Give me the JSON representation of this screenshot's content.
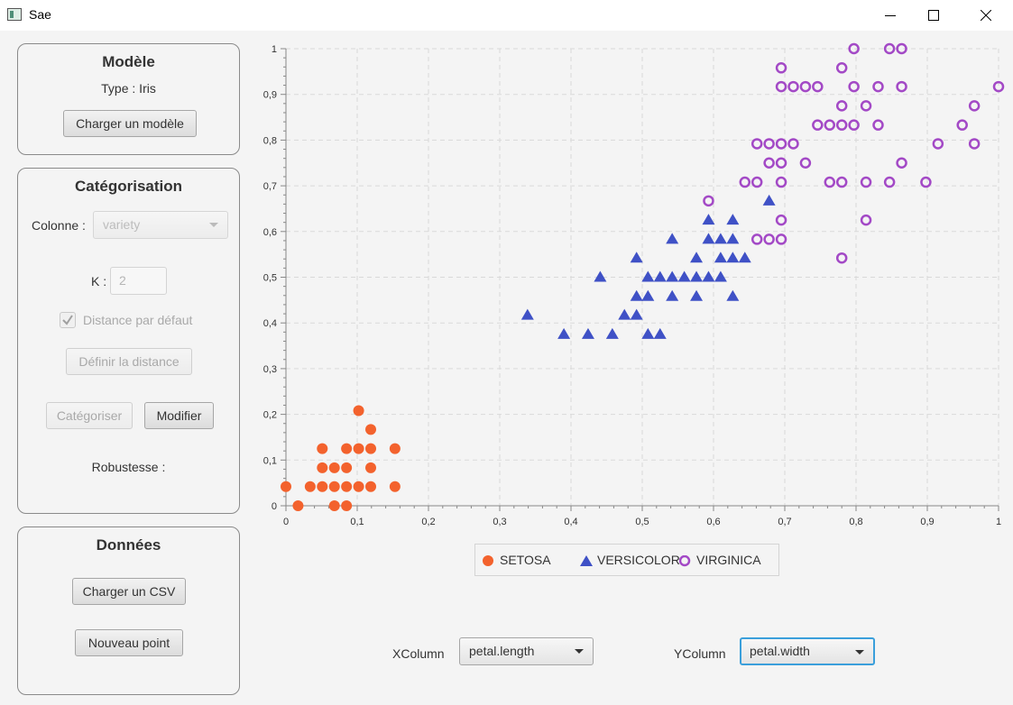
{
  "window": {
    "title": "Sae"
  },
  "model_panel": {
    "title": "Modèle",
    "type_text": "Type : Iris",
    "load_button": "Charger un modèle"
  },
  "categorization_panel": {
    "title": "Catégorisation",
    "column_label": "Colonne :",
    "column_value": "variety",
    "k_label": "K :",
    "k_value": "2",
    "default_distance_label": "Distance par défaut",
    "default_distance_checked": true,
    "define_distance_button": "Définir la distance",
    "categorize_button": "Catégoriser",
    "modify_button": "Modifier",
    "robustness_label": "Robustesse :"
  },
  "data_panel": {
    "title": "Données",
    "load_csv_button": "Charger un CSV",
    "new_point_button": "Nouveau point"
  },
  "axis_selectors": {
    "x_label": "XColumn",
    "x_value": "petal.length",
    "y_label": "YColumn",
    "y_value": "petal.width"
  },
  "chart_data": {
    "type": "scatter",
    "xlim": [
      0,
      1
    ],
    "ylim": [
      0,
      1
    ],
    "x_ticks": [
      "0",
      "0,1",
      "0,2",
      "0,3",
      "0,4",
      "0,5",
      "0,6",
      "0,7",
      "0,8",
      "0,9",
      "1"
    ],
    "y_ticks": [
      "0",
      "0,1",
      "0,2",
      "0,3",
      "0,4",
      "0,5",
      "0,6",
      "0,7",
      "0,8",
      "0,9",
      "1"
    ],
    "grid": true,
    "legend_position": "bottom",
    "colors": {
      "setosa": "#f3622d",
      "versicolor": "#3f51c6",
      "virginica": "#a349c6"
    },
    "series": [
      {
        "name": "SETOSA",
        "marker": "filled-circle",
        "points": [
          [
            0,
            0.042
          ],
          [
            0.017,
            0
          ],
          [
            0.034,
            0.042
          ],
          [
            0.051,
            0.042
          ],
          [
            0.051,
            0.083
          ],
          [
            0.051,
            0.125
          ],
          [
            0.068,
            0
          ],
          [
            0.068,
            0.042
          ],
          [
            0.068,
            0.083
          ],
          [
            0.085,
            0
          ],
          [
            0.085,
            0.042
          ],
          [
            0.085,
            0.083
          ],
          [
            0.085,
            0.125
          ],
          [
            0.102,
            0.042
          ],
          [
            0.102,
            0.125
          ],
          [
            0.102,
            0.208
          ],
          [
            0.119,
            0.042
          ],
          [
            0.119,
            0.083
          ],
          [
            0.119,
            0.125
          ],
          [
            0.119,
            0.167
          ],
          [
            0.153,
            0.042
          ],
          [
            0.153,
            0.125
          ]
        ]
      },
      {
        "name": "VERSICOLOR",
        "marker": "triangle",
        "points": [
          [
            0.339,
            0.417
          ],
          [
            0.39,
            0.375
          ],
          [
            0.424,
            0.375
          ],
          [
            0.441,
            0.5
          ],
          [
            0.458,
            0.375
          ],
          [
            0.475,
            0.417
          ],
          [
            0.492,
            0.417
          ],
          [
            0.492,
            0.458
          ],
          [
            0.492,
            0.542
          ],
          [
            0.508,
            0.375
          ],
          [
            0.508,
            0.458
          ],
          [
            0.508,
            0.5
          ],
          [
            0.525,
            0.375
          ],
          [
            0.525,
            0.5
          ],
          [
            0.542,
            0.458
          ],
          [
            0.542,
            0.5
          ],
          [
            0.542,
            0.583
          ],
          [
            0.559,
            0.5
          ],
          [
            0.576,
            0.458
          ],
          [
            0.576,
            0.5
          ],
          [
            0.576,
            0.542
          ],
          [
            0.593,
            0.5
          ],
          [
            0.593,
            0.583
          ],
          [
            0.593,
            0.625
          ],
          [
            0.61,
            0.5
          ],
          [
            0.61,
            0.542
          ],
          [
            0.61,
            0.583
          ],
          [
            0.627,
            0.458
          ],
          [
            0.627,
            0.542
          ],
          [
            0.627,
            0.583
          ],
          [
            0.627,
            0.625
          ],
          [
            0.644,
            0.542
          ],
          [
            0.678,
            0.667
          ]
        ]
      },
      {
        "name": "VIRGINICA",
        "marker": "hollow-circle",
        "points": [
          [
            0.593,
            0.667
          ],
          [
            0.644,
            0.708
          ],
          [
            0.661,
            0.583
          ],
          [
            0.661,
            0.708
          ],
          [
            0.661,
            0.792
          ],
          [
            0.678,
            0.583
          ],
          [
            0.678,
            0.75
          ],
          [
            0.678,
            0.792
          ],
          [
            0.695,
            0.583
          ],
          [
            0.695,
            0.625
          ],
          [
            0.695,
            0.708
          ],
          [
            0.695,
            0.75
          ],
          [
            0.695,
            0.792
          ],
          [
            0.695,
            0.917
          ],
          [
            0.695,
            0.958
          ],
          [
            0.712,
            0.792
          ],
          [
            0.712,
            0.917
          ],
          [
            0.729,
            0.75
          ],
          [
            0.729,
            0.917
          ],
          [
            0.746,
            0.833
          ],
          [
            0.746,
            0.917
          ],
          [
            0.763,
            0.708
          ],
          [
            0.763,
            0.833
          ],
          [
            0.78,
            0.542
          ],
          [
            0.78,
            0.708
          ],
          [
            0.78,
            0.833
          ],
          [
            0.78,
            0.875
          ],
          [
            0.78,
            0.958
          ],
          [
            0.797,
            0.833
          ],
          [
            0.797,
            0.917
          ],
          [
            0.797,
            1.0
          ],
          [
            0.814,
            0.625
          ],
          [
            0.814,
            0.708
          ],
          [
            0.814,
            0.875
          ],
          [
            0.831,
            0.833
          ],
          [
            0.831,
            0.917
          ],
          [
            0.847,
            0.708
          ],
          [
            0.847,
            1.0
          ],
          [
            0.864,
            0.75
          ],
          [
            0.864,
            0.917
          ],
          [
            0.864,
            1.0
          ],
          [
            0.898,
            0.708
          ],
          [
            0.915,
            0.792
          ],
          [
            0.949,
            0.833
          ],
          [
            0.966,
            0.792
          ],
          [
            0.966,
            0.875
          ],
          [
            1.0,
            0.917
          ]
        ]
      }
    ]
  }
}
